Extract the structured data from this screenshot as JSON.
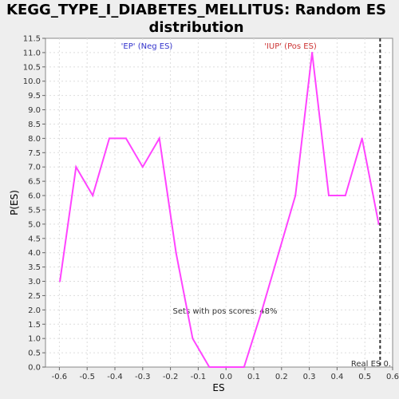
{
  "chart_data": {
    "type": "line",
    "title_line1": "KEGG_TYPE_I_DIABETES_MELLITUS: Random ES",
    "title_line2": "distribution",
    "xlabel": "ES",
    "ylabel": "P(ES)",
    "xlim": [
      -0.65,
      0.6
    ],
    "ylim": [
      0,
      11.5
    ],
    "xticks": [
      -0.6,
      -0.5,
      -0.4,
      -0.3,
      -0.2,
      -0.1,
      0.0,
      0.1,
      0.2,
      0.3,
      0.4,
      0.5,
      0.6
    ],
    "xtick_labels": [
      "-0.6",
      "-0.5",
      "-0.4",
      "-0.3",
      "-0.2",
      "-0.1",
      "0.0",
      "0.1",
      "0.2",
      "0.3",
      "0.4",
      "0.5",
      "0.6"
    ],
    "yticks": [
      0,
      0.5,
      1,
      1.5,
      2,
      2.5,
      3,
      3.5,
      4,
      4.5,
      5,
      5.5,
      6,
      6.5,
      7,
      7.5,
      8,
      8.5,
      9,
      9.5,
      10,
      10.5,
      11,
      11.5
    ],
    "ytick_labels": [
      "0.0",
      "0.5",
      "1.0",
      "1.5",
      "2.0",
      "2.5",
      "3.0",
      "3.5",
      "4.0",
      "4.5",
      "5.0",
      "5.5",
      "6.0",
      "6.5",
      "7.0",
      "7.5",
      "8.0",
      "8.5",
      "9.0",
      "9.5",
      "10.0",
      "10.5",
      "11.0",
      "11.5"
    ],
    "grid": true,
    "series": [
      {
        "color": "#ff44ff",
        "x": [
          -0.598,
          -0.54,
          -0.48,
          -0.42,
          -0.36,
          -0.3,
          -0.24,
          -0.18,
          -0.12,
          -0.06,
          0.0,
          0.065,
          0.13,
          0.19,
          0.25,
          0.31,
          0.37,
          0.43,
          0.49,
          0.55
        ],
        "y": [
          3,
          7,
          6,
          8,
          8,
          7,
          8,
          4,
          1,
          0,
          0,
          0,
          2,
          4,
          6,
          11,
          6,
          6,
          8,
          5
        ]
      }
    ],
    "real_es": 0.555,
    "real_es_label": "Real ES 0.",
    "annotations": {
      "neg": "'EP' (Neg ES)",
      "neg_color": "#3333cc",
      "pos": "'IUP' (Pos ES)",
      "pos_color": "#cc3333",
      "pos_scores": "Sets with pos scores: 48%"
    }
  }
}
